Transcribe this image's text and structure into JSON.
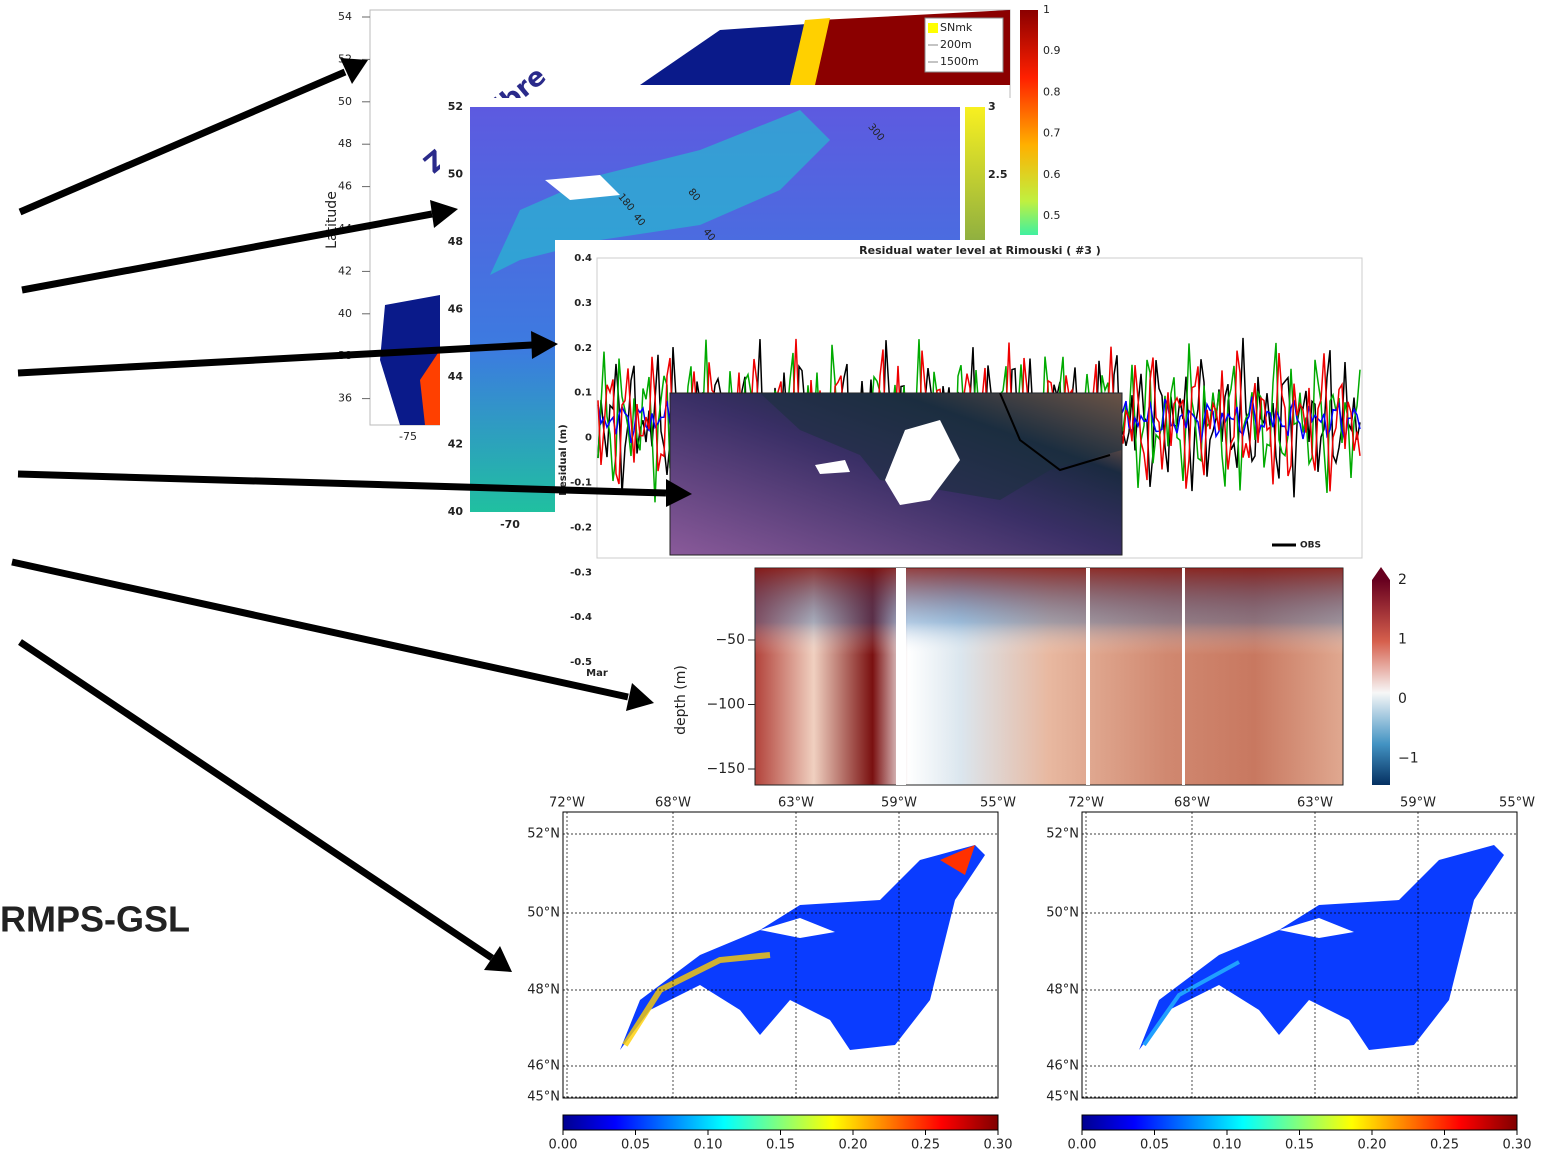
{
  "label": "RMPS-GSL",
  "panel1": {
    "overlay_text": "Zone libre",
    "y_label": "Latitude",
    "y_ticks": [
      "54",
      "52",
      "50",
      "48",
      "46",
      "44",
      "42",
      "40",
      "38",
      "36"
    ],
    "x_ticks": [
      "-75"
    ],
    "colorbar_ticks": [
      "1",
      "0.9",
      "0.8",
      "0.7",
      "0.6",
      "0.5"
    ],
    "legend": [
      "SNmk",
      "200m",
      "1500m"
    ]
  },
  "panel2": {
    "y_ticks": [
      "52",
      "50",
      "48",
      "46",
      "44",
      "42",
      "40"
    ],
    "x_ticks": [
      "-70"
    ],
    "colorbar_ticks": [
      "3",
      "2.5"
    ],
    "contour_labels": [
      "300",
      "180",
      "40",
      "80",
      "40"
    ]
  },
  "panel3": {
    "title": "Residual water level at Rimouski ( #3 )",
    "y_label": "Residual (m)",
    "y_ticks": [
      "0.4",
      "0.3",
      "0.2",
      "0.1",
      "0",
      "-0.1",
      "-0.2",
      "-0.3",
      "-0.4",
      "-0.5"
    ],
    "x_ticks": [
      "Mar"
    ],
    "legend": [
      "OBS"
    ]
  },
  "panel5": {
    "y_label": "depth (m)",
    "y_ticks": [
      "−50",
      "−100",
      "−150"
    ],
    "colorbar_ticks": [
      "2",
      "1",
      "0",
      "−1"
    ]
  },
  "maps": [
    {
      "lon_ticks": [
        "72°W",
        "68°W",
        "63°W",
        "59°W",
        "55°W"
      ],
      "lat_ticks": [
        "52°N",
        "50°N",
        "48°N",
        "46°N",
        "45°N"
      ],
      "colorbar_ticks": [
        "0.00",
        "0.05",
        "0.10",
        "0.15",
        "0.20",
        "0.25",
        "0.30"
      ]
    },
    {
      "lon_ticks": [
        "72°W",
        "68°W",
        "63°W",
        "59°W",
        "55°W"
      ],
      "lat_ticks": [
        "52°N",
        "50°N",
        "48°N",
        "46°N",
        "45°N"
      ],
      "colorbar_ticks": [
        "0.00",
        "0.05",
        "0.10",
        "0.15",
        "0.20",
        "0.25",
        "0.30"
      ]
    }
  ]
}
